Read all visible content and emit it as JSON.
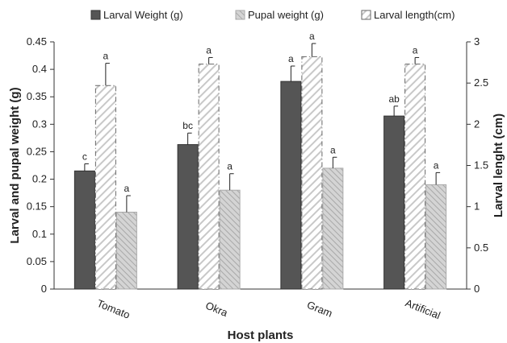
{
  "chart_data": {
    "type": "bar",
    "categories": [
      "Tomato",
      "Okra",
      "Gram",
      "Artificial"
    ],
    "series": [
      {
        "name": "Larval Weight (g)",
        "axis": "left",
        "values": [
          0.215,
          0.263,
          0.378,
          0.315
        ],
        "errors": [
          0.013,
          0.021,
          0.028,
          0.018
        ],
        "labels": [
          "c",
          "bc",
          "a",
          "ab"
        ],
        "color": "#555555",
        "pattern": "solid"
      },
      {
        "name": "Larval length(cm)",
        "axis": "right",
        "values": [
          2.47,
          2.73,
          2.82,
          2.73
        ],
        "errors": [
          0.27,
          0.08,
          0.16,
          0.08
        ],
        "labels": [
          "a",
          "a",
          "a",
          "a"
        ],
        "color": "#cccccc",
        "pattern": "hatch"
      },
      {
        "name": "Pupal weight (g)",
        "axis": "left",
        "values": [
          0.14,
          0.18,
          0.22,
          0.19
        ],
        "errors": [
          0.03,
          0.03,
          0.02,
          0.022
        ],
        "labels": [
          "a",
          "a",
          "a",
          "a"
        ],
        "color": "#bbbbbb",
        "pattern": "diagonal"
      }
    ],
    "legend_order": [
      "Larval Weight (g)",
      "Pupal weight (g)",
      "Larval length(cm)"
    ],
    "legend_position": "top",
    "xlabel": "Host plants",
    "ylabel_left": "Larval and pupal weight (g)",
    "ylabel_right": "Larval lenght (cm)",
    "ylim_left": [
      0,
      0.45
    ],
    "yticks_left": [
      "0",
      "0.05",
      "0.1",
      "0.15",
      "0.2",
      "0.25",
      "0.3",
      "0.35",
      "0.4",
      "0.45"
    ],
    "ylim_right": [
      0,
      3
    ],
    "yticks_right": [
      "0",
      "0.5",
      "1",
      "1.5",
      "2",
      "2.5",
      "3"
    ],
    "grid": false
  }
}
